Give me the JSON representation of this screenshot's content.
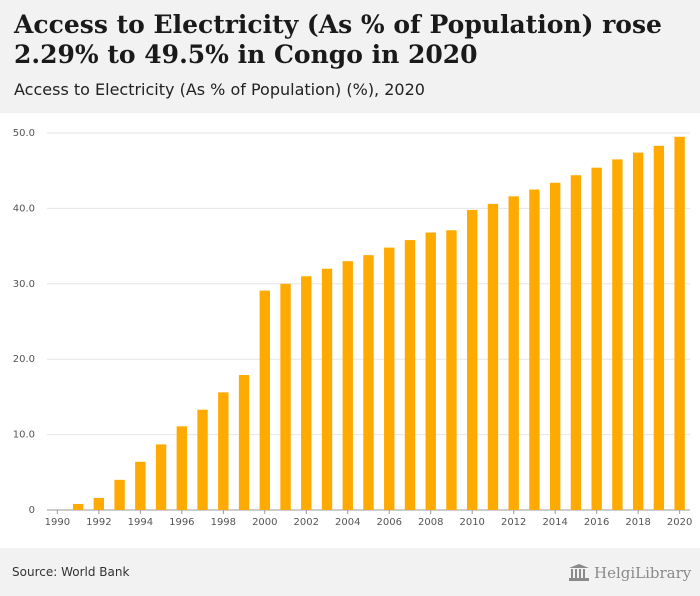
{
  "header": {
    "title": "Access to Electricity (As % of Population) rose 2.29% to 49.5% in Congo in 2020",
    "subtitle": "Access to Electricity (As % of Population) (%), 2020"
  },
  "footer": {
    "source": "Source: World Bank",
    "brand": "HelgiLibrary"
  },
  "colors": {
    "bar": "#ffaa00",
    "grid": "#e6e6e6",
    "axis": "#999999"
  },
  "chart_data": {
    "type": "bar",
    "x": [
      1990,
      1991,
      1992,
      1993,
      1994,
      1995,
      1996,
      1997,
      1998,
      1999,
      2000,
      2001,
      2002,
      2003,
      2004,
      2005,
      2006,
      2007,
      2008,
      2009,
      2010,
      2011,
      2012,
      2013,
      2014,
      2015,
      2016,
      2017,
      2018,
      2019,
      2020
    ],
    "values": [
      0.0,
      0.8,
      1.6,
      4.0,
      6.4,
      8.7,
      11.1,
      13.3,
      15.6,
      17.9,
      29.1,
      30.0,
      31.0,
      32.0,
      33.0,
      33.8,
      34.8,
      35.8,
      36.8,
      37.1,
      39.8,
      40.6,
      41.6,
      42.5,
      43.4,
      44.4,
      45.4,
      46.5,
      47.4,
      48.3,
      49.5
    ],
    "xtick_labels": [
      "1990",
      "1992",
      "1994",
      "1996",
      "1998",
      "2000",
      "2002",
      "2004",
      "2006",
      "2008",
      "2010",
      "2012",
      "2014",
      "2016",
      "2018",
      "2020"
    ],
    "ytick_labels": [
      "0",
      "10.0",
      "20.0",
      "30.0",
      "40.0",
      "50.0"
    ],
    "ylim": [
      0,
      50
    ],
    "grid": true,
    "title": "Access to Electricity (As % of Population) rose 2.29% to 49.5% in Congo in 2020",
    "subtitle": "Access to Electricity (As % of Population) (%), 2020",
    "xlabel": "",
    "ylabel": ""
  }
}
